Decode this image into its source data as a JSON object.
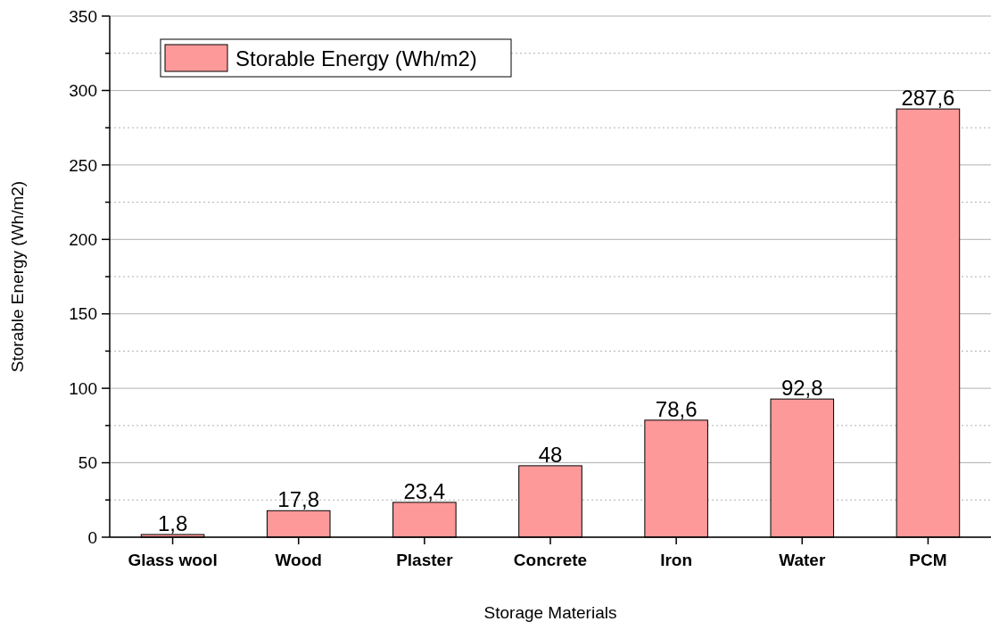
{
  "chart_data": {
    "type": "bar",
    "xlabel": "Storage Materials",
    "ylabel": "Storable Energy (Wh/m2)",
    "categories": [
      "Glass wool",
      "Wood",
      "Plaster",
      "Concrete",
      "Iron",
      "Water",
      "PCM"
    ],
    "series": [
      {
        "name": "Storable Energy (Wh/m2)",
        "color": "#fe9999",
        "values": [
          1.8,
          17.8,
          23.4,
          48,
          78.6,
          92.8,
          287.6
        ],
        "value_labels": [
          "1,8",
          "17,8",
          "23,4",
          "48",
          "78,6",
          "92,8",
          "287,6"
        ]
      }
    ],
    "ylim": [
      0,
      350
    ],
    "yticks": [
      0,
      {
        "value": 25,
        "label": null
      },
      50,
      {
        "value": 75,
        "label": null
      },
      100,
      {
        "value": 125,
        "label": null
      },
      150,
      {
        "value": 175,
        "label": null
      },
      200,
      {
        "value": 225,
        "label": null
      },
      250,
      {
        "value": 275,
        "label": null
      },
      300,
      {
        "value": 325,
        "label": null
      },
      350
    ],
    "grid": "y",
    "legend": "top left"
  }
}
